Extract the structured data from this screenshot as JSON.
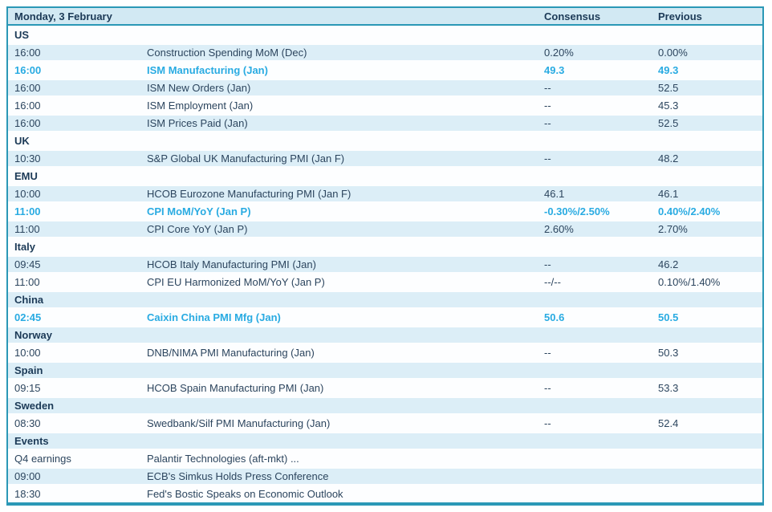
{
  "colors": {
    "accent_highlight": "#29abe2",
    "border_teal": "#2b98b6",
    "header_bg": "#d2e9f3",
    "band_bg": "#dceef7",
    "text": "#2c455e"
  },
  "table": {
    "title": "Monday, 3 February",
    "columns": {
      "consensus": "Consensus",
      "previous": "Previous"
    },
    "rows": [
      {
        "type": "section",
        "label": "US"
      },
      {
        "type": "event",
        "time": "16:00",
        "event": "Construction Spending MoM (Dec)",
        "consensus": "0.20%",
        "previous": "0.00%",
        "highlight": false
      },
      {
        "type": "event",
        "time": "16:00",
        "event": "ISM Manufacturing (Jan)",
        "consensus": "49.3",
        "previous": "49.3",
        "highlight": true
      },
      {
        "type": "event",
        "time": "16:00",
        "event": "ISM New Orders (Jan)",
        "consensus": "--",
        "previous": "52.5",
        "highlight": false
      },
      {
        "type": "event",
        "time": "16:00",
        "event": "ISM Employment (Jan)",
        "consensus": "--",
        "previous": "45.3",
        "highlight": false
      },
      {
        "type": "event",
        "time": "16:00",
        "event": "ISM Prices Paid (Jan)",
        "consensus": "--",
        "previous": "52.5",
        "highlight": false
      },
      {
        "type": "section",
        "label": "UK"
      },
      {
        "type": "event",
        "time": "10:30",
        "event": "S&P Global UK Manufacturing PMI (Jan F)",
        "consensus": "--",
        "previous": "48.2",
        "highlight": false
      },
      {
        "type": "section",
        "label": "EMU"
      },
      {
        "type": "event",
        "time": "10:00",
        "event": "HCOB Eurozone Manufacturing PMI (Jan F)",
        "consensus": "46.1",
        "previous": "46.1",
        "highlight": false
      },
      {
        "type": "event",
        "time": "11:00",
        "event": "CPI MoM/YoY (Jan P)",
        "consensus": "-0.30%/2.50%",
        "previous": "0.40%/2.40%",
        "highlight": true
      },
      {
        "type": "event",
        "time": "11:00",
        "event": "CPI Core YoY (Jan P)",
        "consensus": "2.60%",
        "previous": "2.70%",
        "highlight": false
      },
      {
        "type": "section",
        "label": "Italy"
      },
      {
        "type": "event",
        "time": "09:45",
        "event": "HCOB Italy Manufacturing PMI (Jan)",
        "consensus": "--",
        "previous": "46.2",
        "highlight": false
      },
      {
        "type": "event",
        "time": "11:00",
        "event": "CPI EU Harmonized MoM/YoY (Jan P)",
        "consensus": "--/--",
        "previous": "0.10%/1.40%",
        "highlight": false
      },
      {
        "type": "section",
        "label": "China"
      },
      {
        "type": "event",
        "time": "02:45",
        "event": "Caixin China PMI Mfg (Jan)",
        "consensus": "50.6",
        "previous": "50.5",
        "highlight": true
      },
      {
        "type": "section",
        "label": "Norway"
      },
      {
        "type": "event",
        "time": "10:00",
        "event": "DNB/NIMA PMI Manufacturing (Jan)",
        "consensus": "--",
        "previous": "50.3",
        "highlight": false
      },
      {
        "type": "section",
        "label": "Spain"
      },
      {
        "type": "event",
        "time": "09:15",
        "event": "HCOB Spain Manufacturing PMI (Jan)",
        "consensus": "--",
        "previous": "53.3",
        "highlight": false
      },
      {
        "type": "section",
        "label": "Sweden"
      },
      {
        "type": "event",
        "time": "08:30",
        "event": "Swedbank/Silf PMI Manufacturing (Jan)",
        "consensus": "--",
        "previous": "52.4",
        "highlight": false
      },
      {
        "type": "section",
        "label": "Events"
      },
      {
        "type": "event",
        "time": "Q4 earnings",
        "event": "Palantir Technologies (aft-mkt) ...",
        "consensus": "",
        "previous": "",
        "highlight": false
      },
      {
        "type": "event",
        "time": "09:00",
        "event": "ECB's Simkus Holds Press Conference",
        "consensus": "",
        "previous": "",
        "highlight": false
      },
      {
        "type": "event",
        "time": "18:30",
        "event": "Fed's Bostic Speaks on Economic Outlook",
        "consensus": "",
        "previous": "",
        "highlight": false
      }
    ]
  }
}
